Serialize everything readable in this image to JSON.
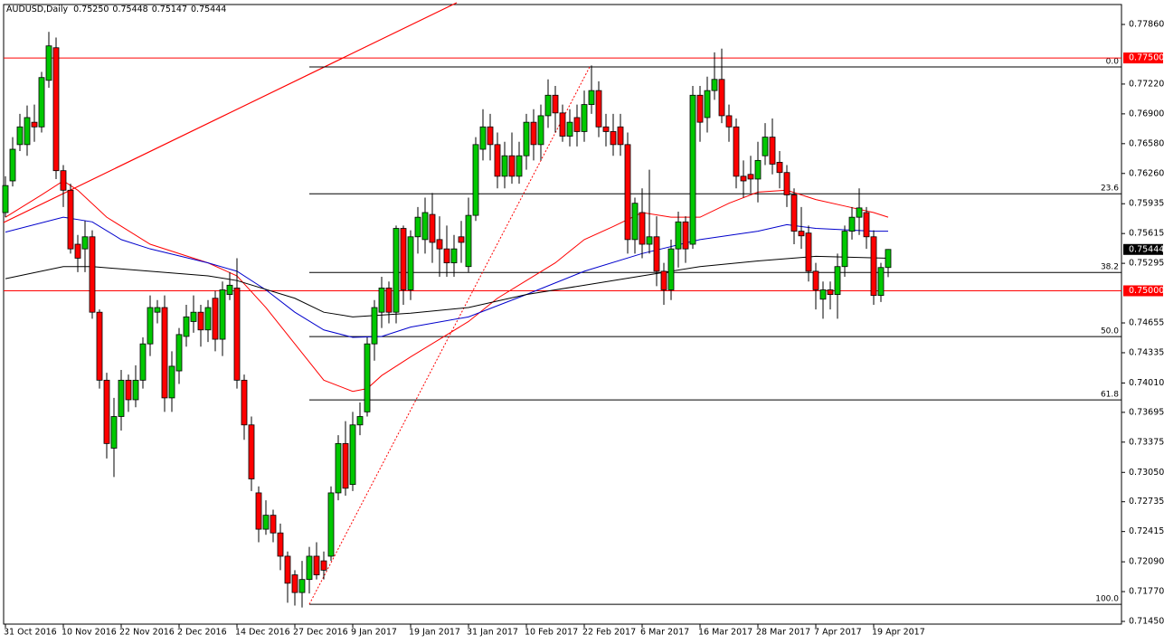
{
  "chart_data": {
    "type": "candlestick",
    "title": "AUDUSD,Daily",
    "last_bar_labels": [
      "0.75250",
      "0.75448",
      "0.75147",
      "0.75444"
    ],
    "categories": [
      "31 Oct 2016",
      null,
      null,
      null,
      null,
      null,
      null,
      null,
      "10 Nov 2016",
      null,
      null,
      null,
      null,
      null,
      null,
      null,
      "22 Nov 2016",
      null,
      null,
      null,
      null,
      null,
      null,
      null,
      "2 Dec 2016",
      null,
      null,
      null,
      null,
      null,
      null,
      null,
      "14 Dec 2016",
      null,
      null,
      null,
      null,
      null,
      null,
      null,
      "27 Dec 2016",
      null,
      null,
      null,
      null,
      null,
      null,
      null,
      "9 Jan 2017",
      null,
      null,
      null,
      null,
      null,
      null,
      null,
      "19 Jan 2017",
      null,
      null,
      null,
      null,
      null,
      null,
      null,
      "31 Jan 2017",
      null,
      null,
      null,
      null,
      null,
      null,
      null,
      "10 Feb 2017",
      null,
      null,
      null,
      null,
      null,
      null,
      null,
      "22 Feb 2017",
      null,
      null,
      null,
      null,
      null,
      null,
      null,
      "6 Mar 2017",
      null,
      null,
      null,
      null,
      null,
      null,
      null,
      "16 Mar 2017",
      null,
      null,
      null,
      null,
      null,
      null,
      null,
      "28 Mar 2017",
      null,
      null,
      null,
      null,
      null,
      null,
      null,
      "7 Apr 2017",
      null,
      null,
      null,
      null,
      null,
      null,
      null,
      "19 Apr 2017",
      null,
      null
    ],
    "open": [
      0.7584,
      0.7618,
      0.7657,
      0.7657,
      0.7681,
      0.7676,
      0.7726,
      0.7761,
      0.7629,
      0.7608,
      0.755,
      0.7545,
      0.7558,
      0.7477,
      0.7404,
      0.7331,
      0.7365,
      0.7404,
      0.7383,
      0.7404,
      0.7443,
      0.7477,
      0.7482,
      0.7385,
      0.7414,
      0.7451,
      0.7467,
      0.7477,
      0.7458,
      0.7492,
      0.7448,
      0.7496,
      0.7503,
      0.7404,
      0.7356,
      0.7283,
      0.7244,
      0.7259,
      0.724,
      0.7215,
      0.7195,
      0.7176,
      0.719,
      0.7215,
      0.721,
      0.7215,
      0.7283,
      0.7336,
      0.7292,
      0.7356,
      0.737,
      0.7443,
      0.7477,
      0.7503,
      0.7477,
      0.7567,
      0.7501,
      0.7558,
      0.7555,
      0.7582,
      0.7555,
      0.7545,
      0.753,
      0.7558,
      0.7526,
      0.7581,
      0.7652,
      0.7676,
      0.7657,
      0.7623,
      0.7645,
      0.7623,
      0.7645,
      0.7681,
      0.7657,
      0.7688,
      0.771,
      0.7691,
      0.7666,
      0.7686,
      0.7671,
      0.77,
      0.7715,
      0.7676,
      0.7671,
      0.7676,
      0.7657,
      0.7555,
      0.7584,
      0.755,
      0.7558,
      0.7521,
      0.7501,
      0.7545,
      0.7574,
      0.755,
      0.771,
      0.7686,
      0.7715,
      0.7727,
      0.7688,
      0.7676,
      0.7623,
      0.7625,
      0.762,
      0.7645,
      0.7665,
      0.7638,
      0.7627,
      0.7603,
      0.7564,
      0.7562,
      0.7521,
      0.7491,
      0.7501,
      0.7496,
      0.7526,
      0.7564,
      0.7579,
      0.7584,
      0.7558,
      0.7495,
      0.7525
    ],
    "high": [
      0.7623,
      0.7665,
      0.769,
      0.7699,
      0.77,
      0.7735,
      0.7778,
      0.7772,
      0.7635,
      0.7615,
      0.756,
      0.7575,
      0.7565,
      0.748,
      0.7412,
      0.7385,
      0.7415,
      0.741,
      0.742,
      0.745,
      0.7495,
      0.749,
      0.7495,
      0.7435,
      0.746,
      0.7485,
      0.7495,
      0.7485,
      0.749,
      0.75,
      0.751,
      0.752,
      0.7535,
      0.741,
      0.7365,
      0.729,
      0.7275,
      0.7265,
      0.725,
      0.722,
      0.72,
      0.721,
      0.7225,
      0.723,
      0.722,
      0.729,
      0.7345,
      0.736,
      0.737,
      0.738,
      0.745,
      0.749,
      0.7515,
      0.751,
      0.757,
      0.757,
      0.7565,
      0.759,
      0.76,
      0.7605,
      0.758,
      0.757,
      0.756,
      0.7575,
      0.76,
      0.7665,
      0.7695,
      0.769,
      0.767,
      0.766,
      0.767,
      0.766,
      0.769,
      0.7695,
      0.77,
      0.7727,
      0.772,
      0.77,
      0.7695,
      0.77,
      0.7715,
      0.7742,
      0.7725,
      0.769,
      0.769,
      0.769,
      0.767,
      0.76,
      0.761,
      0.763,
      0.758,
      0.753,
      0.7555,
      0.7585,
      0.758,
      0.772,
      0.772,
      0.773,
      0.7756,
      0.776,
      0.77,
      0.7685,
      0.764,
      0.7645,
      0.766,
      0.768,
      0.7685,
      0.765,
      0.7635,
      0.761,
      0.759,
      0.757,
      0.753,
      0.751,
      0.751,
      0.754,
      0.757,
      0.759,
      0.761,
      0.759,
      0.7565,
      0.753,
      0.75448
    ],
    "low": [
      0.7579,
      0.7612,
      0.765,
      0.7645,
      0.766,
      0.767,
      0.7718,
      0.762,
      0.759,
      0.754,
      0.752,
      0.752,
      0.747,
      0.7395,
      0.732,
      0.73,
      0.735,
      0.737,
      0.7375,
      0.7395,
      0.743,
      0.7465,
      0.737,
      0.737,
      0.74,
      0.744,
      0.7455,
      0.744,
      0.7445,
      0.7435,
      0.743,
      0.749,
      0.7395,
      0.734,
      0.7285,
      0.723,
      0.7238,
      0.723,
      0.72,
      0.7165,
      0.7162,
      0.716,
      0.7175,
      0.719,
      0.719,
      0.721,
      0.7275,
      0.728,
      0.7285,
      0.7345,
      0.7365,
      0.7425,
      0.746,
      0.7465,
      0.7465,
      0.7485,
      0.749,
      0.754,
      0.754,
      0.753,
      0.7515,
      0.7515,
      0.7515,
      0.753,
      0.752,
      0.7575,
      0.764,
      0.764,
      0.761,
      0.761,
      0.7615,
      0.7615,
      0.763,
      0.764,
      0.764,
      0.7675,
      0.767,
      0.766,
      0.7655,
      0.7655,
      0.766,
      0.769,
      0.7665,
      0.7655,
      0.7645,
      0.7645,
      0.754,
      0.754,
      0.7535,
      0.754,
      0.7505,
      0.7485,
      0.749,
      0.7525,
      0.753,
      0.7545,
      0.766,
      0.767,
      0.7705,
      0.768,
      0.766,
      0.761,
      0.76,
      0.7605,
      0.7595,
      0.7635,
      0.7625,
      0.761,
      0.759,
      0.755,
      0.7545,
      0.751,
      0.748,
      0.747,
      0.748,
      0.747,
      0.7515,
      0.7555,
      0.756,
      0.7545,
      0.7485,
      0.7488,
      0.75147
    ],
    "close": [
      0.7613,
      0.7652,
      0.7676,
      0.7686,
      0.7676,
      0.7729,
      0.7763,
      0.7629,
      0.7608,
      0.7545,
      0.7535,
      0.7558,
      0.7477,
      0.7404,
      0.7336,
      0.7365,
      0.7404,
      0.7383,
      0.7404,
      0.7443,
      0.7482,
      0.7482,
      0.7385,
      0.7419,
      0.7453,
      0.7472,
      0.7477,
      0.7458,
      0.7482,
      0.7448,
      0.7501,
      0.7506,
      0.7404,
      0.7356,
      0.7298,
      0.7244,
      0.7259,
      0.724,
      0.7215,
      0.7186,
      0.7176,
      0.719,
      0.7215,
      0.7195,
      0.72,
      0.7283,
      0.7336,
      0.7288,
      0.7356,
      0.7365,
      0.7443,
      0.7482,
      0.7503,
      0.7477,
      0.7567,
      0.7501,
      0.7558,
      0.7579,
      0.7584,
      0.7552,
      0.7545,
      0.753,
      0.7545,
      0.7552,
      0.7581,
      0.7657,
      0.7676,
      0.7657,
      0.7623,
      0.7645,
      0.7623,
      0.7645,
      0.7681,
      0.7657,
      0.7688,
      0.771,
      0.7691,
      0.7666,
      0.7681,
      0.7671,
      0.77,
      0.7715,
      0.7676,
      0.7671,
      0.7657,
      0.7657,
      0.7555,
      0.7594,
      0.755,
      0.7558,
      0.7521,
      0.7501,
      0.7545,
      0.7574,
      0.7545,
      0.771,
      0.7681,
      0.7715,
      0.7727,
      0.7688,
      0.7676,
      0.7623,
      0.7618,
      0.762,
      0.764,
      0.7665,
      0.7636,
      0.7627,
      0.7603,
      0.7564,
      0.7559,
      0.7521,
      0.7501,
      0.7501,
      0.7496,
      0.7526,
      0.7564,
      0.7579,
      0.7589,
      0.7558,
      0.7495,
      0.7525,
      0.75444
    ],
    "up_color": "#00c800",
    "down_color": "#ff0000",
    "moving_averages": [
      {
        "color": "#ff0000",
        "x": [
          0,
          5,
          8,
          10,
          14,
          20,
          28,
          32,
          36,
          40,
          44,
          48,
          50,
          52,
          56,
          60,
          64,
          68,
          72,
          76,
          80,
          84,
          88,
          92,
          96,
          100,
          104,
          108,
          112,
          116,
          120,
          122
        ],
        "values": [
          0.7579,
          0.7603,
          0.7618,
          0.7608,
          0.7579,
          0.755,
          0.753,
          0.7516,
          0.7482,
          0.7443,
          0.7404,
          0.7392,
          0.7395,
          0.7409,
          0.7429,
          0.7448,
          0.7467,
          0.7492,
          0.7511,
          0.753,
          0.7555,
          0.7569,
          0.7584,
          0.7579,
          0.7579,
          0.7594,
          0.7606,
          0.7608,
          0.7598,
          0.7591,
          0.7584,
          0.7579
        ]
      },
      {
        "color": "#0000cc",
        "x": [
          0,
          8,
          12,
          16,
          20,
          28,
          32,
          36,
          40,
          44,
          48,
          52,
          56,
          64,
          72,
          80,
          88,
          96,
          104,
          108,
          112,
          120,
          122
        ],
        "values": [
          0.7563,
          0.7579,
          0.7574,
          0.7555,
          0.7545,
          0.753,
          0.7521,
          0.7501,
          0.7477,
          0.7458,
          0.745,
          0.7451,
          0.7461,
          0.7472,
          0.7496,
          0.7521,
          0.754,
          0.7555,
          0.7564,
          0.7571,
          0.7567,
          0.7564,
          0.7564
        ]
      },
      {
        "color": "#000000",
        "x": [
          0,
          8,
          12,
          20,
          28,
          32,
          40,
          44,
          48,
          56,
          64,
          72,
          80,
          88,
          96,
          104,
          112,
          122
        ],
        "values": [
          0.7513,
          0.7526,
          0.7526,
          0.7521,
          0.7516,
          0.7511,
          0.7492,
          0.7477,
          0.7472,
          0.7476,
          0.7482,
          0.7496,
          0.7506,
          0.7516,
          0.7526,
          0.7532,
          0.7537,
          0.7535
        ]
      }
    ],
    "levels": [
      {
        "value": 0.775,
        "label": "0.77500"
      },
      {
        "value": 0.75,
        "label": "0.75000"
      }
    ],
    "level_color": "#ff0000",
    "last_price": {
      "value": 0.75444,
      "label": "0.75444"
    },
    "fibonacci": [
      {
        "value": 0.77404,
        "label": "0.0"
      },
      {
        "value": 0.76042,
        "label": "23.6"
      },
      {
        "value": 0.75197,
        "label": "38.2"
      },
      {
        "value": 0.74508,
        "label": "50.0"
      },
      {
        "value": 0.73828,
        "label": "61.8"
      },
      {
        "value": 0.71634,
        "label": "100.0"
      }
    ],
    "ylim": [
      0.71421,
      0.78074
    ],
    "yticks": [
      {
        "value": 0.7786,
        "label": "0.77860"
      },
      {
        "value": 0.7722,
        "label": "0.77220"
      },
      {
        "value": 0.769,
        "label": "0.76900"
      },
      {
        "value": 0.7658,
        "label": "0.76580"
      },
      {
        "value": 0.7626,
        "label": "0.76260"
      },
      {
        "value": 0.75935,
        "label": "0.75935"
      },
      {
        "value": 0.75615,
        "label": "0.75615"
      },
      {
        "value": 0.75295,
        "label": "0.75295"
      },
      {
        "value": 0.74655,
        "label": "0.74655"
      },
      {
        "value": 0.74335,
        "label": "0.74335"
      },
      {
        "value": 0.7401,
        "label": "0.74010"
      },
      {
        "value": 0.73695,
        "label": "0.73695"
      },
      {
        "value": 0.73375,
        "label": "0.73375"
      },
      {
        "value": 0.7305,
        "label": "0.73050"
      },
      {
        "value": 0.72735,
        "label": "0.72735"
      },
      {
        "value": 0.72415,
        "label": "0.72415"
      },
      {
        "value": 0.7209,
        "label": "0.72090"
      },
      {
        "value": 0.7177,
        "label": "0.71770"
      },
      {
        "value": 0.7145,
        "label": "0.71450"
      }
    ]
  }
}
